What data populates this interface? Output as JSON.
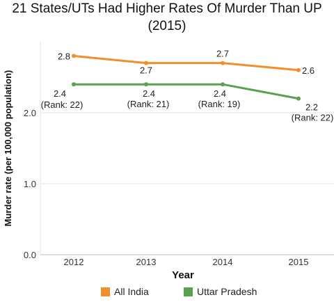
{
  "chart_data": {
    "type": "line",
    "title": "21 States/UTs Had Higher Rates Of Murder Than UP (2015)",
    "title_lines": [
      "21 States/UTs Had Higher Rates Of Murder Than UP",
      "(2015)"
    ],
    "xlabel": "Year",
    "ylabel": "Murder rate (per 100,000 population)",
    "categories": [
      "2012",
      "2013",
      "2014",
      "2015"
    ],
    "yticks": [
      "0.0",
      "1.0",
      "2.0"
    ],
    "ylim": [
      0,
      3
    ],
    "grid": true,
    "legend_position": "bottom",
    "series": [
      {
        "name": "All India",
        "color": "#f28e2b",
        "values": [
          2.8,
          2.7,
          2.7,
          2.6
        ],
        "labels": [
          "2.8",
          "2.7",
          "2.7",
          "2.6"
        ],
        "ranks": [
          "",
          "",
          "",
          ""
        ]
      },
      {
        "name": "Uttar Pradesh",
        "color": "#59a14f",
        "values": [
          2.4,
          2.4,
          2.4,
          2.2
        ],
        "labels": [
          "2.4",
          "2.4",
          "2.4",
          "2.2"
        ],
        "ranks": [
          "(Rank: 22)",
          "(Rank: 21)",
          "(Rank: 19)",
          "(Rank: 22)"
        ]
      }
    ]
  }
}
